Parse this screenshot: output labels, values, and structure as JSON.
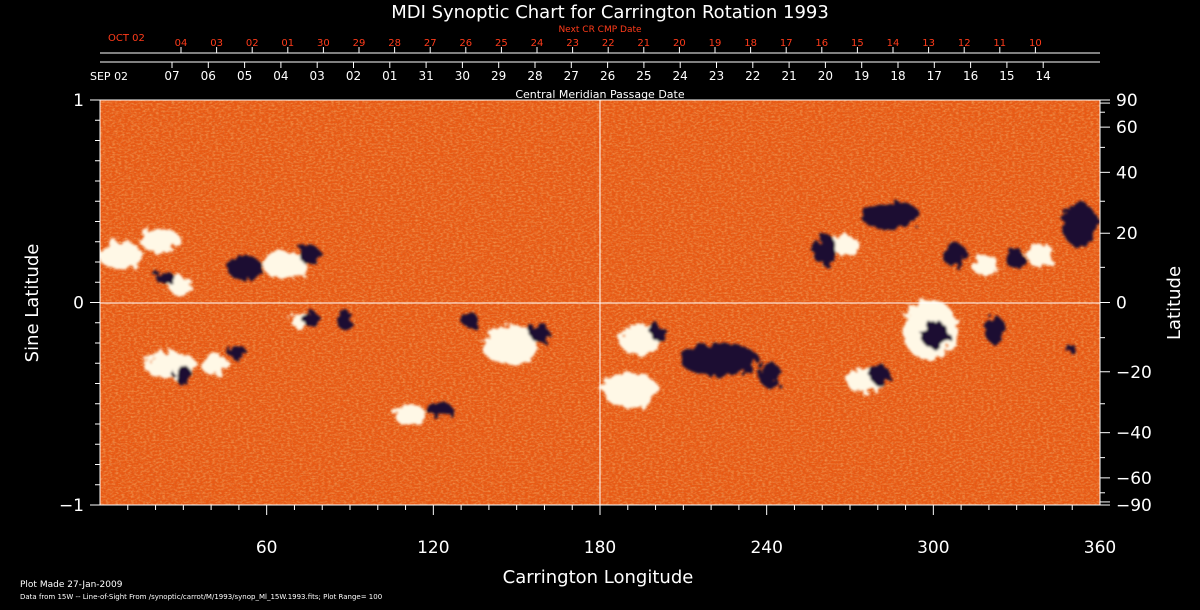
{
  "chart_data": {
    "type": "heatmap",
    "title": "MDI Synoptic Chart for Carrington Rotation 1993",
    "xlabel": "Carrington Longitude",
    "ylabel_left": "Sine Latitude",
    "ylabel_right": "Latitude",
    "xlim": [
      0,
      360
    ],
    "ylim": [
      -1,
      1
    ],
    "x_ticks": [
      "60",
      "120",
      "180",
      "240",
      "300",
      "360"
    ],
    "y_left_ticks": [
      "1",
      "0",
      "−1"
    ],
    "y_right_ticks": [
      "90",
      "60",
      "40",
      "20",
      "0",
      "−20",
      "−40",
      "−60",
      "−90"
    ],
    "y_right_tick_values": [
      90,
      60,
      40,
      20,
      0,
      -20,
      -40,
      -60,
      -90
    ],
    "top_axis": {
      "label": "Central Meridian Passage Date",
      "start_label": "SEP 02",
      "dates": [
        "07",
        "06",
        "05",
        "04",
        "03",
        "02",
        "01",
        "31",
        "30",
        "29",
        "28",
        "27",
        "26",
        "25",
        "24",
        "23",
        "22",
        "21",
        "20",
        "19",
        "18",
        "17",
        "16",
        "15",
        "14"
      ]
    },
    "next_axis": {
      "label": "Next CR CMP Date",
      "start_label": "OCT 02",
      "dates": [
        "04",
        "03",
        "02",
        "01",
        "30",
        "29",
        "28",
        "27",
        "26",
        "25",
        "24",
        "23",
        "22",
        "21",
        "20",
        "19",
        "18",
        "17",
        "16",
        "15",
        "14",
        "13",
        "12",
        "11",
        "10"
      ]
    },
    "grid": "lines at longitude 180 and sine latitude 0",
    "colors": {
      "background_field": "#e85a14",
      "positive": "#ffffff",
      "negative": "#1c1030",
      "axis": "#ffffff",
      "next_axis": "#ff3b1a"
    }
  },
  "footer": {
    "plot_made": "Plot Made 27-Jan-2009",
    "data_note": "Data from 15W -- Line-of-Sight From /synoptic/carrot/M/1993/synop_Ml_15W.1993.fits; Plot Range=  100"
  }
}
